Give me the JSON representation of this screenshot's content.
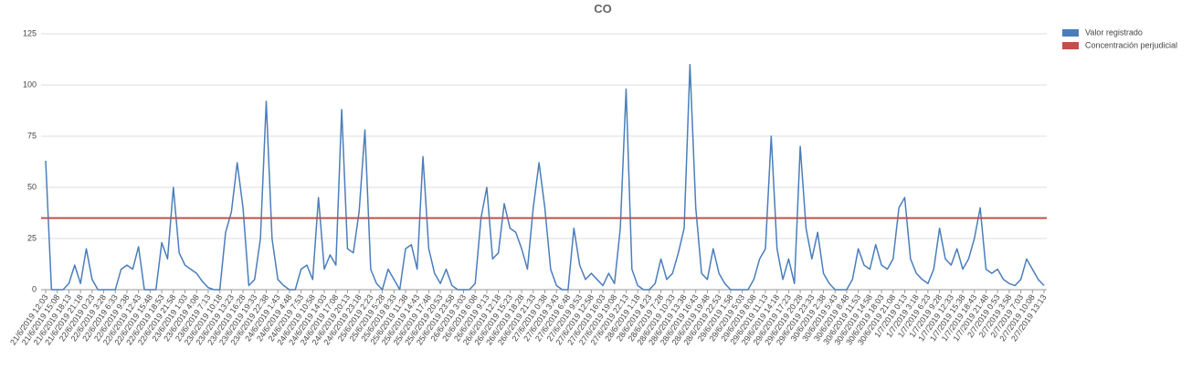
{
  "chart_data": {
    "type": "line",
    "title": "CO",
    "categories": [
      "21/6/2019 12:03",
      null,
      "21/6/2019 15:08",
      null,
      "21/6/2019 18:13",
      null,
      "21/6/2019 21:18",
      null,
      "22/6/2019 0:23",
      null,
      "22/6/2019 3:28",
      null,
      "22/6/2019 6:33",
      null,
      "22/6/2019 9:38",
      null,
      "22/6/2019 12:43",
      null,
      "22/6/2019 15:48",
      null,
      "22/6/2019 18:53",
      null,
      "22/6/2019 21:58",
      null,
      "23/6/2019 1:03",
      null,
      "23/6/2019 4:08",
      null,
      "23/6/2019 7:13",
      null,
      "23/6/2019 10:18",
      null,
      "23/6/2019 13:23",
      null,
      "23/6/2019 16:28",
      null,
      "23/6/2019 19:33",
      null,
      "23/6/2019 22:38",
      null,
      "24/6/2019 1:43",
      null,
      "24/6/2019 4:48",
      null,
      "24/6/2019 7:53",
      null,
      "24/6/2019 10:58",
      null,
      "24/6/2019 14:03",
      null,
      "24/6/2019 17:08",
      null,
      "24/6/2019 20:13",
      null,
      "24/6/2019 23:18",
      null,
      "25/6/2019 2:23",
      null,
      "25/6/2019 5:28",
      null,
      "25/6/2019 8:33",
      null,
      "25/6/2019 11:38",
      null,
      "25/6/2019 14:43",
      null,
      "25/6/2019 17:48",
      null,
      "25/6/2019 20:53",
      null,
      "25/6/2019 23:58",
      null,
      "26/6/2019 3:03",
      null,
      "26/6/2019 6:08",
      null,
      "26/6/2019 9:13",
      null,
      "26/6/2019 12:18",
      null,
      "26/6/2019 15:23",
      null,
      "26/6/2019 18:28",
      null,
      "26/6/2019 21:33",
      null,
      "27/6/2019 0:38",
      null,
      "27/6/2019 3:43",
      null,
      "27/6/2019 6:48",
      null,
      "27/6/2019 9:53",
      null,
      "27/6/2019 12:58",
      null,
      "27/6/2019 16:03",
      null,
      "27/6/2019 19:08",
      null,
      "27/6/2019 22:13",
      null,
      "28/6/2019 1:18",
      null,
      "28/6/2019 4:23",
      null,
      "28/6/2019 7:28",
      null,
      "28/6/2019 10:33",
      null,
      "28/6/2019 13:38",
      null,
      "28/6/2019 16:43",
      null,
      "28/6/2019 19:48",
      null,
      "28/6/2019 22:53",
      null,
      "29/6/2019 1:58",
      null,
      "29/6/2019 5:03",
      null,
      "29/6/2019 8:08",
      null,
      "29/6/2019 11:13",
      null,
      "29/6/2019 14:18",
      null,
      "29/6/2019 17:23",
      null,
      "29/6/2019 20:28",
      null,
      "29/6/2019 23:33",
      null,
      "30/6/2019 2:38",
      null,
      "30/6/2019 5:43",
      null,
      "30/6/2019 8:48",
      null,
      "30/6/2019 11:53",
      null,
      "30/6/2019 14:58",
      null,
      "30/6/2019 18:03",
      null,
      "30/6/2019 21:08",
      null,
      "1/7/2019 0:13",
      null,
      "1/7/2019 3:18",
      null,
      "1/7/2019 6:23",
      null,
      "1/7/2019 9:28",
      null,
      "1/7/2019 12:33",
      null,
      "1/7/2019 15:38",
      null,
      "1/7/2019 18:43",
      null,
      "1/7/2019 21:48",
      null,
      "2/7/2019 0:53",
      null,
      "2/7/2019 3:58",
      null,
      "2/7/2019 7:03",
      null,
      "2/7/2019 10:08",
      null,
      "2/7/2019 13:13"
    ],
    "series": [
      {
        "name": "Valor registrado",
        "color": "#4a7ebb",
        "values": [
          63,
          0,
          0,
          0,
          3,
          12,
          3,
          20,
          5,
          0,
          0,
          0,
          0,
          10,
          12,
          10,
          21,
          0,
          0,
          0,
          23,
          15,
          50,
          18,
          12,
          10,
          8,
          4,
          1,
          0,
          0,
          28,
          38,
          62,
          40,
          2,
          5,
          25,
          92,
          25,
          5,
          2,
          0,
          0,
          10,
          12,
          5,
          45,
          10,
          17,
          12,
          88,
          20,
          18,
          38,
          78,
          10,
          3,
          0,
          10,
          5,
          0,
          20,
          22,
          10,
          65,
          20,
          8,
          3,
          10,
          2,
          0,
          0,
          0,
          3,
          35,
          50,
          15,
          18,
          42,
          30,
          28,
          20,
          10,
          40,
          62,
          40,
          10,
          2,
          0,
          0,
          30,
          12,
          5,
          8,
          5,
          2,
          8,
          3,
          30,
          98,
          10,
          2,
          0,
          0,
          3,
          15,
          5,
          8,
          18,
          30,
          110,
          40,
          8,
          5,
          20,
          8,
          3,
          0,
          0,
          0,
          0,
          5,
          15,
          20,
          75,
          20,
          5,
          15,
          3,
          70,
          30,
          15,
          28,
          8,
          3,
          0,
          0,
          0,
          5,
          20,
          12,
          10,
          22,
          12,
          10,
          15,
          40,
          45,
          15,
          8,
          5,
          3,
          10,
          30,
          15,
          12,
          20,
          10,
          15,
          25,
          40,
          10,
          8,
          10,
          5,
          3,
          2,
          5,
          15,
          10,
          5,
          2
        ]
      }
    ],
    "reference_line": {
      "name": "Concentración perjudicial",
      "color": "#c0504d",
      "value": 35
    },
    "ylim": [
      0,
      125
    ],
    "yticks": [
      0,
      25,
      50,
      75,
      100,
      125
    ],
    "grid": true
  }
}
